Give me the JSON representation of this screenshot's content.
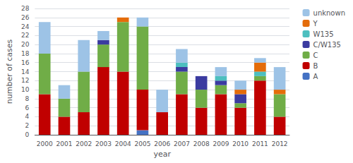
{
  "chart_data": {
    "type": "bar",
    "stacked": true,
    "categories": [
      "2000",
      "2001",
      "2002",
      "2003",
      "2004",
      "2005",
      "2006",
      "2007",
      "2008",
      "2009",
      "2010",
      "2011",
      "2012"
    ],
    "series": [
      {
        "name": "A",
        "color": "#4472C4",
        "values": [
          0,
          0,
          0,
          0,
          0,
          1,
          0,
          0,
          0,
          0,
          0,
          0,
          0
        ]
      },
      {
        "name": "B",
        "color": "#C00000",
        "values": [
          9,
          4,
          5,
          15,
          14,
          9,
          5,
          9,
          6,
          9,
          6,
          12,
          4
        ]
      },
      {
        "name": "C",
        "color": "#70AD47",
        "values": [
          9,
          4,
          9,
          5,
          11,
          14,
          0,
          5,
          4,
          2,
          1,
          1,
          5
        ]
      },
      {
        "name": "C/W135",
        "color": "#3B3BA0",
        "values": [
          0,
          0,
          0,
          1,
          0,
          0,
          0,
          1,
          3,
          1,
          2,
          0,
          0
        ]
      },
      {
        "name": "W135",
        "color": "#4DBFBF",
        "values": [
          0,
          0,
          0,
          0,
          0,
          0,
          0,
          1,
          0,
          1,
          0,
          1,
          0
        ]
      },
      {
        "name": "Y",
        "color": "#E46C0A",
        "values": [
          0,
          0,
          0,
          0,
          1,
          0,
          0,
          0,
          0,
          0,
          1,
          2,
          1
        ]
      },
      {
        "name": "unknown",
        "color": "#9DC3E6",
        "values": [
          7,
          3,
          7,
          2,
          0,
          2,
          5,
          3,
          0,
          2,
          2,
          1,
          5
        ]
      }
    ],
    "xlabel": "year",
    "ylabel": "number of cases",
    "ylim": [
      0,
      28
    ],
    "yticks": [
      0,
      2,
      4,
      6,
      8,
      10,
      12,
      14,
      16,
      18,
      20,
      22,
      24,
      26,
      28
    ],
    "grid": true,
    "legend": "right"
  }
}
